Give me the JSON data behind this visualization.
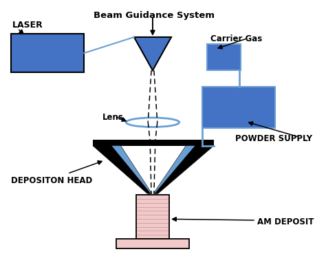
{
  "bg_color": "#ffffff",
  "blue": "#4472C4",
  "lblue": "#6a9fd4",
  "pink": "#f2c9c9",
  "black": "#000000",
  "label_laser": "LASER",
  "label_beam": "Beam Guidance System",
  "label_carrier": "Carrier Gas",
  "label_powder": "POWDER SUPPLY",
  "label_lens": "Lens",
  "label_deposition": "DEPOSITON HEAD",
  "label_deposit": "AM DEPOSIT",
  "figw": 4.74,
  "figh": 4.02,
  "dpi": 100
}
